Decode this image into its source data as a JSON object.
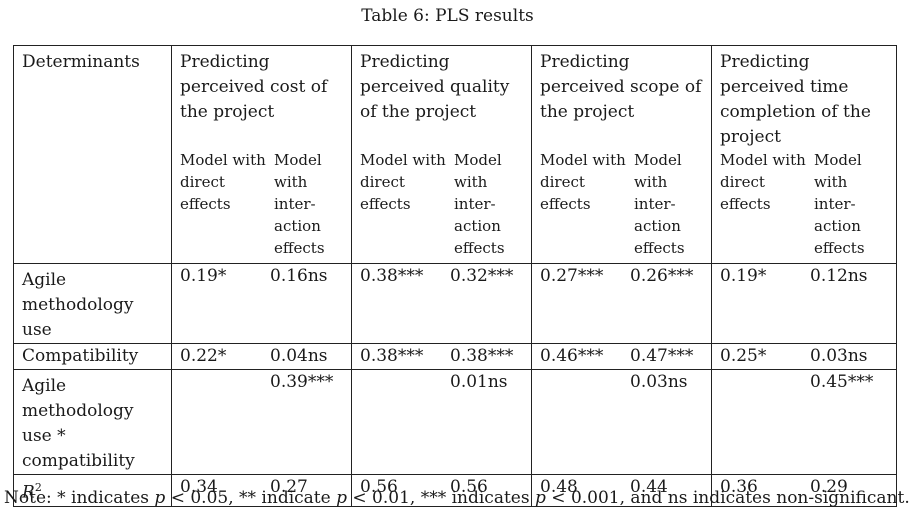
{
  "caption": "Table 6: PLS results",
  "header": {
    "determinants": "Determinants",
    "groups": [
      "Predicting perceived cost of the project",
      "Predicting perceived quality of the project",
      "Predicting perceived scope of the project",
      "Predicting perceived time completion of the project"
    ],
    "model_direct": "Model with direct effects",
    "model_interaction": "Model with inter-action effects"
  },
  "rows": [
    {
      "label": "Agile methodology use",
      "values": [
        "0.19*",
        "0.16ns",
        "0.38***",
        "0.32***",
        "0.27***",
        "0.26***",
        "0.19*",
        "0.12ns"
      ]
    },
    {
      "label": "Compatibility",
      "values": [
        "0.22*",
        "0.04ns",
        "0.38***",
        "0.38***",
        "0.46***",
        "0.47***",
        "0.25*",
        "0.03ns"
      ]
    },
    {
      "label": "Agile methodology use * compatibility",
      "values": [
        "",
        "0.39***",
        "",
        "0.01ns",
        "",
        "0.03ns",
        "",
        "0.45***"
      ]
    },
    {
      "label": "R2",
      "values": [
        "0.34",
        "0.27",
        "0.56",
        "0.56",
        "0.48",
        "0.44",
        "0.36",
        "0.29"
      ]
    }
  ],
  "note": {
    "prefix": "Note: * indicates",
    "t1": "< 0.05, ** indicate",
    "t2": "< 0.01, *** indicates",
    "t3": "< 0.001, and ns indicates non-significant.",
    "p": "p"
  }
}
